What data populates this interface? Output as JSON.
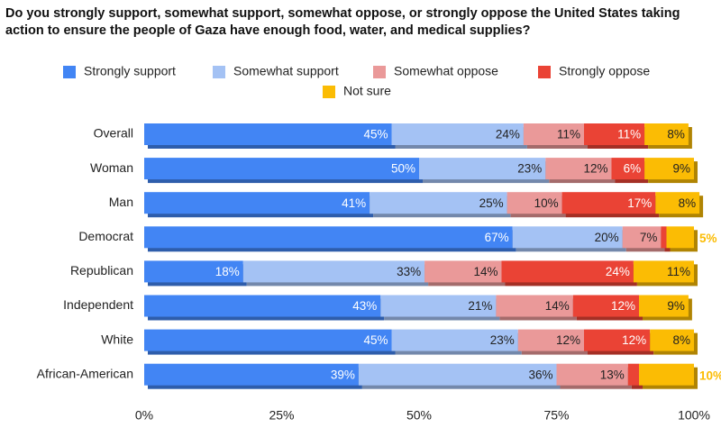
{
  "chart_data": {
    "type": "stacked-bar-horizontal",
    "title": "Do you strongly support, somewhat support, somewhat oppose, or strongly oppose the United States taking action to ensure the people of Gaza have enough food, water, and medical supplies?",
    "categories": [
      "Overall",
      "Woman",
      "Man",
      "Democrat",
      "Republican",
      "Independent",
      "White",
      "African-American"
    ],
    "series": [
      {
        "name": "Strongly support",
        "color": "#4285f4",
        "values": [
          45,
          50,
          41,
          67,
          18,
          43,
          45,
          39
        ],
        "value_labels": [
          "45%",
          "50%",
          "41%",
          "67%",
          "18%",
          "43%",
          "45%",
          "39%"
        ]
      },
      {
        "name": "Somewhat support",
        "color": "#a4c2f4",
        "values": [
          24,
          23,
          25,
          20,
          33,
          21,
          23,
          36
        ],
        "value_labels": [
          "24%",
          "23%",
          "25%",
          "20%",
          "33%",
          "21%",
          "23%",
          "36%"
        ]
      },
      {
        "name": "Somewhat oppose",
        "color": "#ea9999",
        "values": [
          11,
          12,
          10,
          7,
          14,
          14,
          12,
          13
        ],
        "value_labels": [
          "11%",
          "12%",
          "10%",
          "7%",
          "14%",
          "14%",
          "12%",
          "13%"
        ]
      },
      {
        "name": "Strongly oppose",
        "color": "#ea4335",
        "values": [
          11,
          6,
          17,
          1,
          24,
          12,
          12,
          2
        ],
        "value_labels": [
          "11%",
          "6%",
          "17%",
          "1%",
          "24%",
          "12%",
          "12%",
          "2%"
        ]
      },
      {
        "name": "Not sure",
        "color": "#fbbc04",
        "values": [
          8,
          9,
          8,
          5,
          11,
          9,
          8,
          10
        ],
        "value_labels": [
          "8%",
          "9%",
          "8%",
          "5%",
          "11%",
          "9%",
          "8%",
          "10%"
        ]
      }
    ],
    "xlim": [
      0,
      100
    ],
    "xticks": [
      {
        "value": 0,
        "label": "0%"
      },
      {
        "value": 25,
        "label": "25%"
      },
      {
        "value": 50,
        "label": "50%"
      },
      {
        "value": 75,
        "label": "75%"
      },
      {
        "value": 100,
        "label": "100%"
      }
    ]
  }
}
